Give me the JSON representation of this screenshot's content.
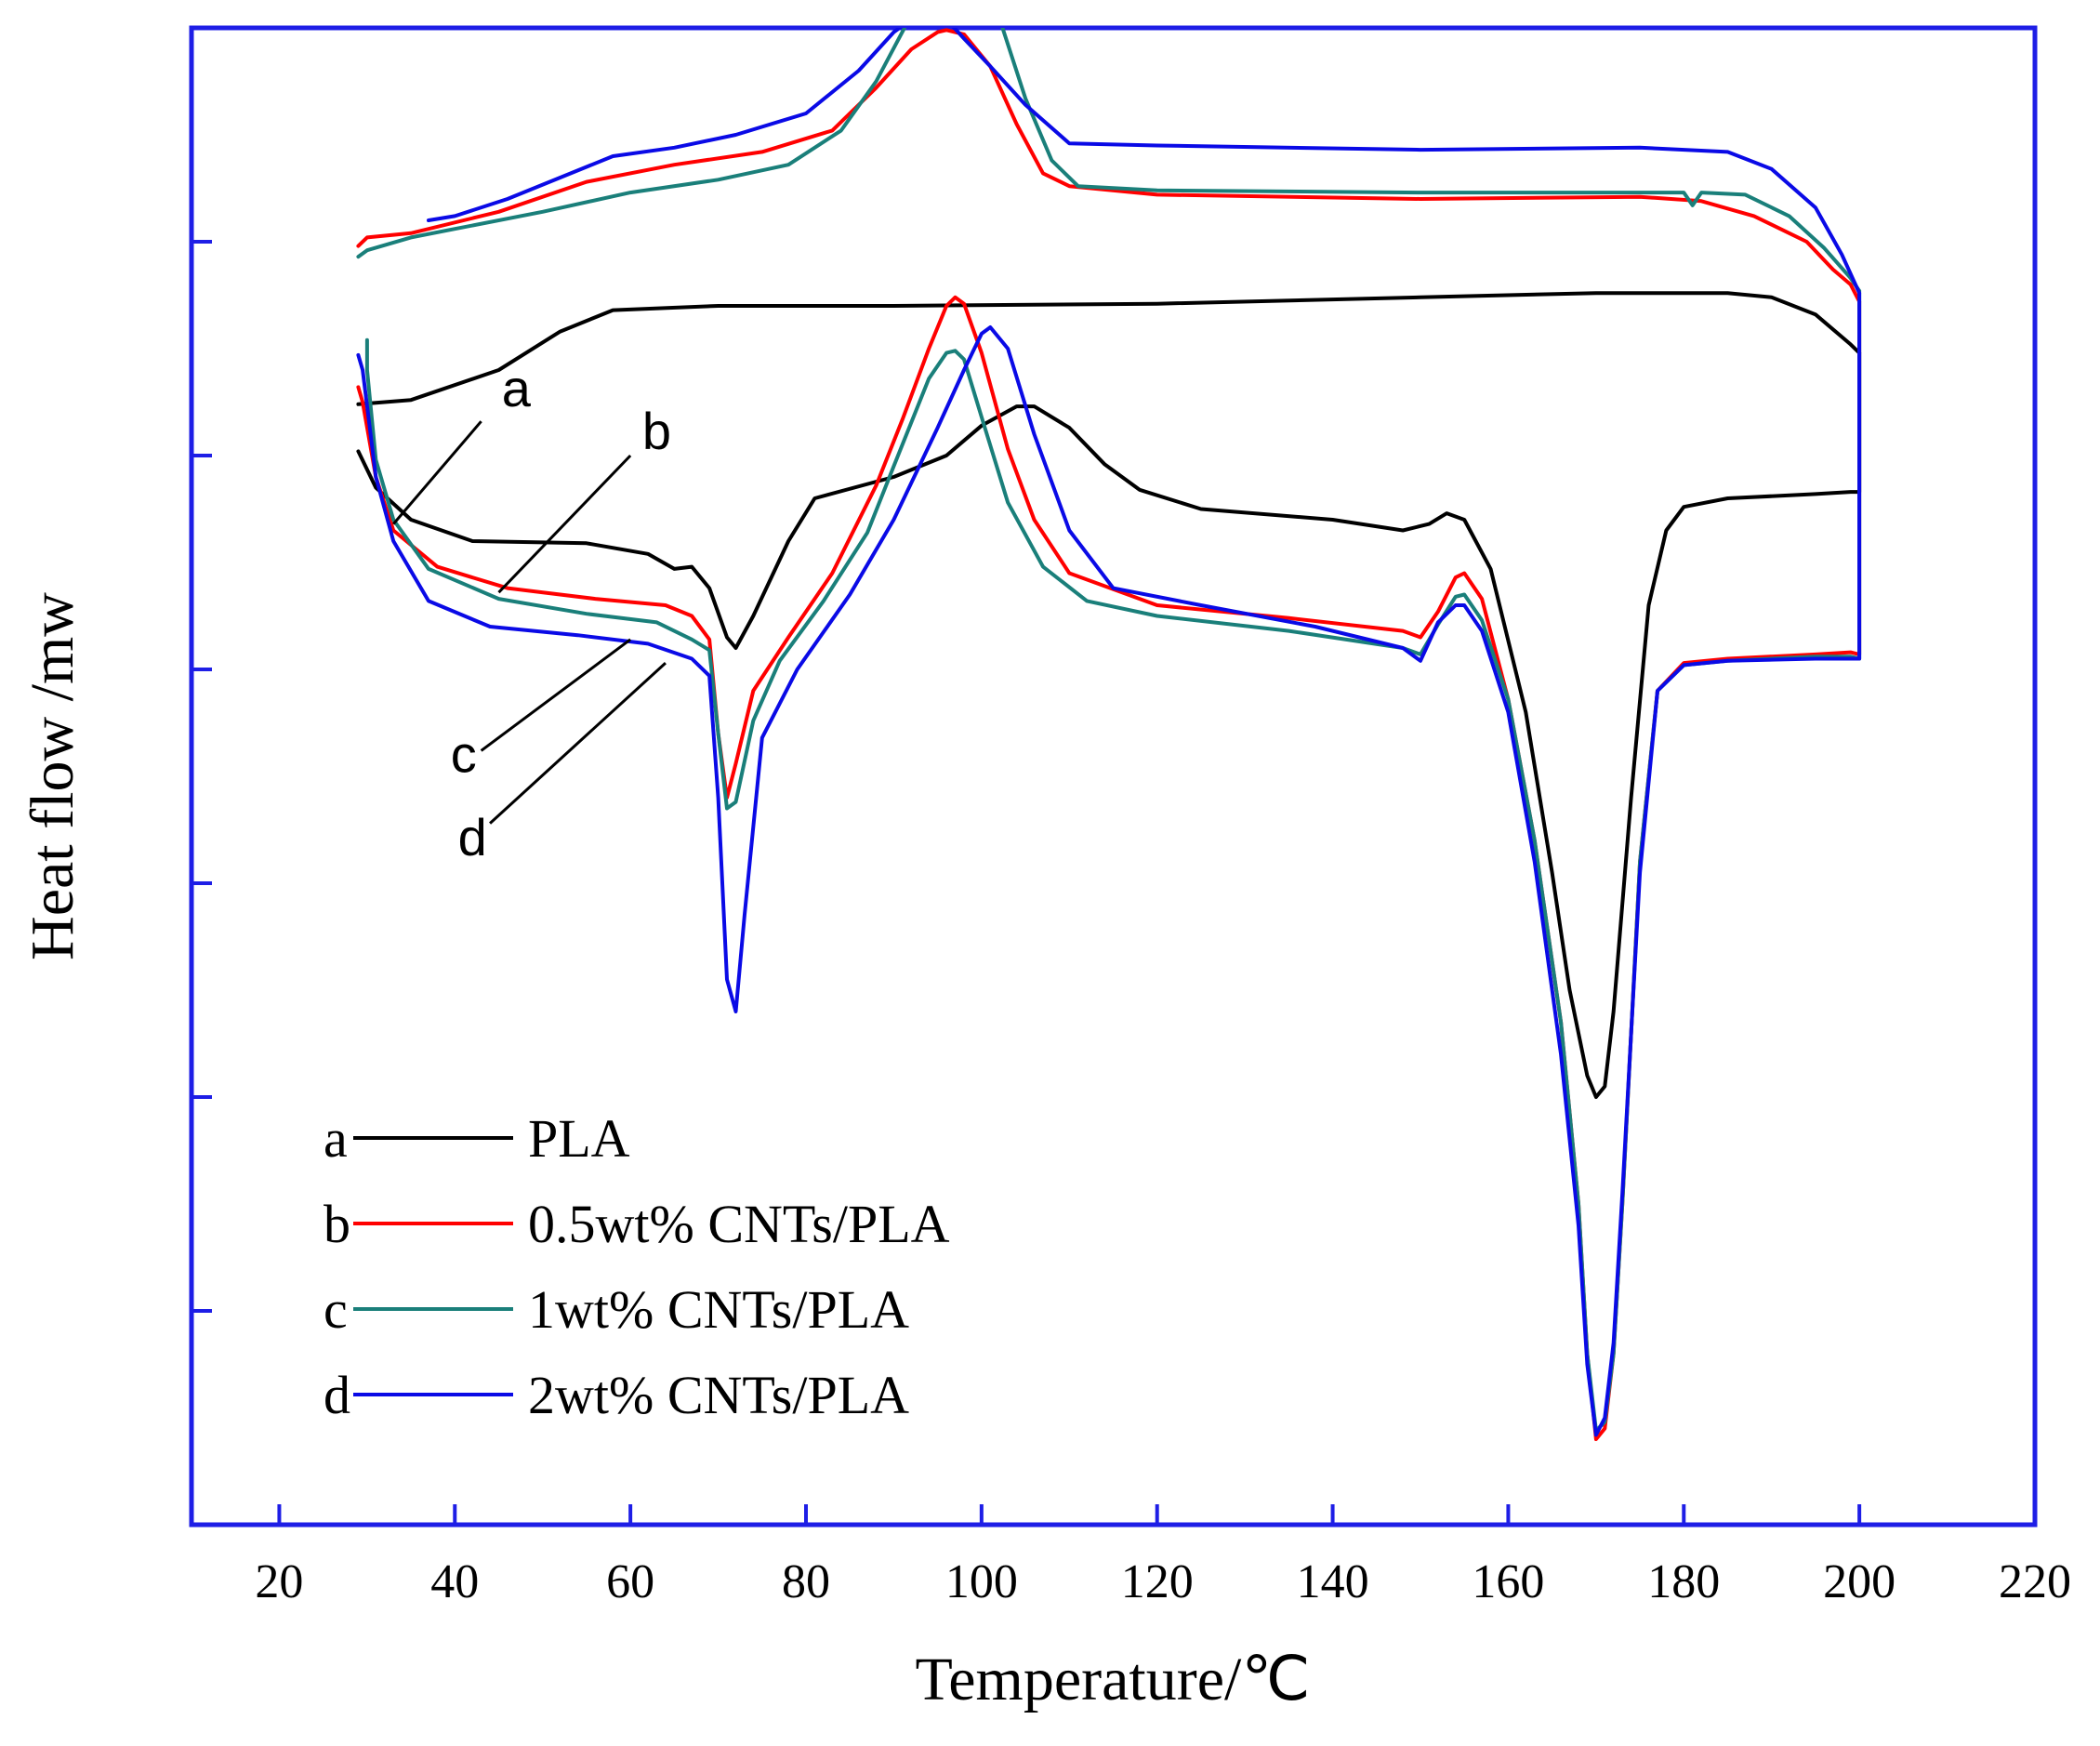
{
  "chart_data": {
    "type": "line",
    "xlabel": "Temperature/℃",
    "ylabel": "Heat flow /mw",
    "xlim": [
      10,
      220
    ],
    "ylim": [
      -7.0,
      0
    ],
    "xticks": [
      20,
      40,
      60,
      80,
      100,
      120,
      140,
      160,
      180,
      200,
      220
    ],
    "y_tick_labels_shown": false,
    "y_tick_count": 7,
    "legend_position": "bottom-left",
    "axis_color": "#1e1ee6",
    "series": [
      {
        "name": "PLA",
        "letter": "a",
        "color": "#000000",
        "cooling": [
          [
            29,
            -1.76
          ],
          [
            35,
            -1.74
          ],
          [
            45,
            -1.6
          ],
          [
            52,
            -1.42
          ],
          [
            58,
            -1.32
          ],
          [
            70,
            -1.3
          ],
          [
            90,
            -1.3
          ],
          [
            120,
            -1.29
          ],
          [
            150,
            -1.26
          ],
          [
            170,
            -1.24
          ],
          [
            185,
            -1.24
          ],
          [
            190,
            -1.26
          ],
          [
            195,
            -1.34
          ],
          [
            199,
            -1.48
          ],
          [
            200,
            -1.52
          ],
          [
            200,
            -1.52
          ]
        ],
        "heating": [
          [
            29,
            -1.98
          ],
          [
            31,
            -2.15
          ],
          [
            35,
            -2.3
          ],
          [
            42,
            -2.4
          ],
          [
            55,
            -2.41
          ],
          [
            62,
            -2.46
          ],
          [
            65,
            -2.53
          ],
          [
            67,
            -2.52
          ],
          [
            69,
            -2.62
          ],
          [
            71,
            -2.85
          ],
          [
            72,
            -2.9
          ],
          [
            74,
            -2.75
          ],
          [
            78,
            -2.4
          ],
          [
            81,
            -2.2
          ],
          [
            90,
            -2.1
          ],
          [
            96,
            -2.0
          ],
          [
            100,
            -1.86
          ],
          [
            104,
            -1.77
          ],
          [
            106,
            -1.77
          ],
          [
            110,
            -1.87
          ],
          [
            114,
            -2.04
          ],
          [
            118,
            -2.16
          ],
          [
            125,
            -2.25
          ],
          [
            140,
            -2.3
          ],
          [
            148,
            -2.35
          ],
          [
            151,
            -2.32
          ],
          [
            153,
            -2.27
          ],
          [
            155,
            -2.3
          ],
          [
            158,
            -2.53
          ],
          [
            162,
            -3.2
          ],
          [
            165,
            -3.95
          ],
          [
            167,
            -4.5
          ],
          [
            169,
            -4.9
          ],
          [
            170,
            -5.0
          ],
          [
            171,
            -4.95
          ],
          [
            172,
            -4.6
          ],
          [
            174,
            -3.6
          ],
          [
            176,
            -2.7
          ],
          [
            178,
            -2.35
          ],
          [
            180,
            -2.24
          ],
          [
            185,
            -2.2
          ],
          [
            195,
            -2.18
          ],
          [
            199,
            -2.17
          ],
          [
            200,
            -2.17
          ],
          [
            200,
            -1.52
          ]
        ]
      },
      {
        "name": "0.5wt% CNTs/PLA",
        "letter": "b",
        "color": "#ff0000",
        "cooling": [
          [
            29,
            -1.02
          ],
          [
            30,
            -0.98
          ],
          [
            35,
            -0.96
          ],
          [
            45,
            -0.86
          ],
          [
            55,
            -0.72
          ],
          [
            65,
            -0.64
          ],
          [
            75,
            -0.58
          ],
          [
            83,
            -0.48
          ],
          [
            88,
            -0.28
          ],
          [
            92,
            -0.1
          ],
          [
            95,
            -0.02
          ],
          [
            96,
            -0.01
          ],
          [
            98,
            -0.03
          ],
          [
            101,
            -0.18
          ],
          [
            104,
            -0.45
          ],
          [
            107,
            -0.68
          ],
          [
            110,
            -0.74
          ],
          [
            120,
            -0.78
          ],
          [
            150,
            -0.8
          ],
          [
            175,
            -0.79
          ],
          [
            182,
            -0.81
          ],
          [
            188,
            -0.88
          ],
          [
            194,
            -1.0
          ],
          [
            197,
            -1.13
          ],
          [
            199,
            -1.2
          ],
          [
            200,
            -1.28
          ]
        ],
        "heating": [
          [
            29,
            -1.68
          ],
          [
            29.5,
            -1.75
          ],
          [
            31,
            -2.1
          ],
          [
            33,
            -2.35
          ],
          [
            38,
            -2.52
          ],
          [
            46,
            -2.62
          ],
          [
            56,
            -2.67
          ],
          [
            64,
            -2.7
          ],
          [
            67,
            -2.75
          ],
          [
            69,
            -2.86
          ],
          [
            70,
            -3.3
          ],
          [
            71,
            -3.6
          ],
          [
            72,
            -3.44
          ],
          [
            74,
            -3.1
          ],
          [
            78,
            -2.85
          ],
          [
            83,
            -2.55
          ],
          [
            88,
            -2.14
          ],
          [
            91,
            -1.83
          ],
          [
            94,
            -1.5
          ],
          [
            96,
            -1.3
          ],
          [
            97,
            -1.26
          ],
          [
            98,
            -1.29
          ],
          [
            100,
            -1.52
          ],
          [
            103,
            -1.97
          ],
          [
            106,
            -2.3
          ],
          [
            110,
            -2.55
          ],
          [
            120,
            -2.7
          ],
          [
            135,
            -2.76
          ],
          [
            148,
            -2.82
          ],
          [
            150,
            -2.85
          ],
          [
            152,
            -2.73
          ],
          [
            154,
            -2.57
          ],
          [
            155,
            -2.55
          ],
          [
            157,
            -2.67
          ],
          [
            160,
            -3.14
          ],
          [
            163,
            -3.8
          ],
          [
            166,
            -4.65
          ],
          [
            168,
            -5.5
          ],
          [
            169,
            -6.2
          ],
          [
            170,
            -6.6
          ],
          [
            171,
            -6.55
          ],
          [
            172,
            -6.2
          ],
          [
            173,
            -5.5
          ],
          [
            175,
            -3.9
          ],
          [
            177,
            -3.1
          ],
          [
            180,
            -2.97
          ],
          [
            185,
            -2.95
          ],
          [
            195,
            -2.93
          ],
          [
            199,
            -2.92
          ],
          [
            200,
            -2.93
          ],
          [
            200,
            -1.28
          ]
        ]
      },
      {
        "name": "1wt% CNTs/PLA",
        "letter": "c",
        "color": "#1a7f7a",
        "cooling": [
          [
            29,
            -1.07
          ],
          [
            30,
            -1.04
          ],
          [
            35,
            -0.98
          ],
          [
            40,
            -0.94
          ],
          [
            50,
            -0.86
          ],
          [
            60,
            -0.77
          ],
          [
            70,
            -0.71
          ],
          [
            78,
            -0.64
          ],
          [
            84,
            -0.48
          ],
          [
            88,
            -0.25
          ],
          [
            92,
            0.06
          ],
          [
            95,
            0.25
          ],
          [
            97,
            0.31
          ],
          [
            99,
            0.29
          ],
          [
            102,
            0.05
          ],
          [
            105,
            -0.33
          ],
          [
            108,
            -0.62
          ],
          [
            111,
            -0.74
          ],
          [
            120,
            -0.76
          ],
          [
            150,
            -0.77
          ],
          [
            180,
            -0.77
          ],
          [
            181,
            -0.83
          ],
          [
            182,
            -0.77
          ],
          [
            187,
            -0.78
          ],
          [
            192,
            -0.88
          ],
          [
            196,
            -1.03
          ],
          [
            199,
            -1.17
          ],
          [
            200,
            -1.23
          ]
        ],
        "heating": [
          [
            30,
            -1.46
          ],
          [
            30,
            -1.6
          ],
          [
            31,
            -2.02
          ],
          [
            33,
            -2.3
          ],
          [
            37,
            -2.53
          ],
          [
            45,
            -2.67
          ],
          [
            55,
            -2.74
          ],
          [
            63,
            -2.78
          ],
          [
            67,
            -2.86
          ],
          [
            69,
            -2.91
          ],
          [
            70,
            -3.3
          ],
          [
            71,
            -3.65
          ],
          [
            72,
            -3.62
          ],
          [
            74,
            -3.24
          ],
          [
            77,
            -2.96
          ],
          [
            82,
            -2.68
          ],
          [
            87,
            -2.36
          ],
          [
            90,
            -2.05
          ],
          [
            94,
            -1.64
          ],
          [
            96,
            -1.52
          ],
          [
            97,
            -1.51
          ],
          [
            98,
            -1.55
          ],
          [
            100,
            -1.82
          ],
          [
            103,
            -2.22
          ],
          [
            107,
            -2.52
          ],
          [
            112,
            -2.68
          ],
          [
            120,
            -2.75
          ],
          [
            135,
            -2.82
          ],
          [
            148,
            -2.9
          ],
          [
            150,
            -2.93
          ],
          [
            152,
            -2.79
          ],
          [
            154,
            -2.66
          ],
          [
            155,
            -2.65
          ],
          [
            157,
            -2.77
          ],
          [
            160,
            -3.14
          ],
          [
            163,
            -3.8
          ],
          [
            166,
            -4.65
          ],
          [
            168,
            -5.5
          ],
          [
            169,
            -6.2
          ],
          [
            170,
            -6.56
          ],
          [
            171,
            -6.52
          ],
          [
            172,
            -6.2
          ],
          [
            173,
            -5.5
          ],
          [
            175,
            -3.9
          ],
          [
            177,
            -3.1
          ],
          [
            180,
            -2.98
          ],
          [
            185,
            -2.96
          ],
          [
            195,
            -2.94
          ],
          [
            199,
            -2.94
          ],
          [
            200,
            -2.95
          ],
          [
            200,
            -1.23
          ]
        ]
      },
      {
        "name": "2wt% CNTs/PLA",
        "letter": "d",
        "color": "#0a0ae6",
        "cooling": [
          [
            37,
            -0.9
          ],
          [
            40,
            -0.88
          ],
          [
            46,
            -0.8
          ],
          [
            52,
            -0.7
          ],
          [
            58,
            -0.6
          ],
          [
            65,
            -0.56
          ],
          [
            72,
            -0.5
          ],
          [
            80,
            -0.4
          ],
          [
            86,
            -0.2
          ],
          [
            90,
            -0.02
          ],
          [
            93,
            0.07
          ],
          [
            94,
            0.08
          ],
          [
            96,
            0.04
          ],
          [
            98,
            -0.05
          ],
          [
            101,
            -0.18
          ],
          [
            105,
            -0.36
          ],
          [
            110,
            -0.54
          ],
          [
            120,
            -0.55
          ],
          [
            150,
            -0.57
          ],
          [
            175,
            -0.56
          ],
          [
            185,
            -0.58
          ],
          [
            190,
            -0.66
          ],
          [
            195,
            -0.84
          ],
          [
            198,
            -1.06
          ],
          [
            200,
            -1.24
          ]
        ],
        "heating": [
          [
            29,
            -1.53
          ],
          [
            29.5,
            -1.6
          ],
          [
            31,
            -2.1
          ],
          [
            33,
            -2.4
          ],
          [
            37,
            -2.68
          ],
          [
            44,
            -2.8
          ],
          [
            54,
            -2.84
          ],
          [
            62,
            -2.88
          ],
          [
            67,
            -2.95
          ],
          [
            69,
            -3.03
          ],
          [
            70,
            -3.6
          ],
          [
            71,
            -4.45
          ],
          [
            72,
            -4.6
          ],
          [
            73,
            -4.15
          ],
          [
            75,
            -3.32
          ],
          [
            79,
            -3.0
          ],
          [
            85,
            -2.65
          ],
          [
            90,
            -2.3
          ],
          [
            95,
            -1.87
          ],
          [
            98,
            -1.6
          ],
          [
            100,
            -1.43
          ],
          [
            101,
            -1.4
          ],
          [
            103,
            -1.5
          ],
          [
            106,
            -1.9
          ],
          [
            110,
            -2.35
          ],
          [
            115,
            -2.62
          ],
          [
            125,
            -2.7
          ],
          [
            138,
            -2.8
          ],
          [
            148,
            -2.9
          ],
          [
            150,
            -2.96
          ],
          [
            152,
            -2.78
          ],
          [
            154,
            -2.7
          ],
          [
            155,
            -2.7
          ],
          [
            157,
            -2.82
          ],
          [
            160,
            -3.2
          ],
          [
            163,
            -3.9
          ],
          [
            166,
            -4.8
          ],
          [
            168,
            -5.6
          ],
          [
            169,
            -6.25
          ],
          [
            170,
            -6.58
          ],
          [
            171,
            -6.5
          ],
          [
            172,
            -6.15
          ],
          [
            173,
            -5.45
          ],
          [
            175,
            -3.95
          ],
          [
            177,
            -3.1
          ],
          [
            180,
            -2.98
          ],
          [
            185,
            -2.96
          ],
          [
            195,
            -2.95
          ],
          [
            199,
            -2.95
          ],
          [
            200,
            -2.95
          ],
          [
            200,
            -1.24
          ]
        ]
      }
    ],
    "annotations": [
      {
        "label": "a",
        "tip": [
          33,
          -2.32
        ],
        "end": [
          43,
          -1.84
        ],
        "text_at": [
          47,
          -1.77
        ]
      },
      {
        "label": "b",
        "tip": [
          45,
          -2.64
        ],
        "end": [
          60,
          -2.0
        ],
        "text_at": [
          63,
          -1.97
        ]
      },
      {
        "label": "c",
        "tip": [
          60,
          -2.86
        ],
        "end": [
          43,
          -3.38
        ],
        "text_at": [
          41,
          -3.48
        ]
      },
      {
        "label": "d",
        "tip": [
          64,
          -2.97
        ],
        "end": [
          44,
          -3.72
        ],
        "text_at": [
          42,
          -3.87
        ]
      }
    ]
  }
}
